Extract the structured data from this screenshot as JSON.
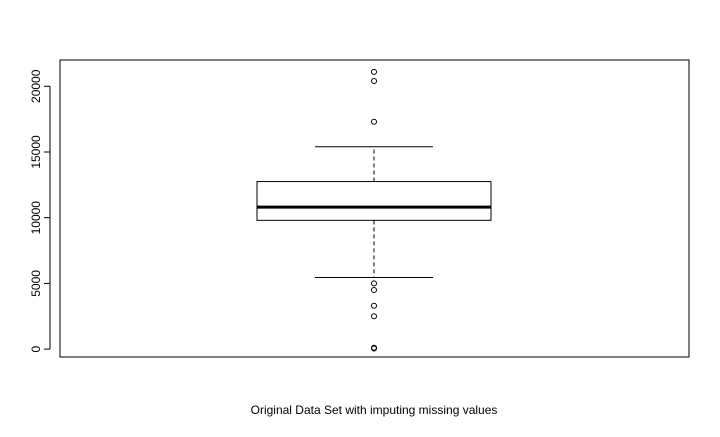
{
  "chart_data": {
    "type": "boxplot",
    "title": "",
    "xlabel": "Original Data Set with imputing missing values",
    "ylabel": "",
    "ylim": [
      -600,
      22000
    ],
    "y_ticks": [
      0,
      5000,
      10000,
      15000,
      20000
    ],
    "y_tick_labels": [
      "0",
      "5000",
      "10000",
      "15000",
      "20000"
    ],
    "grid": false,
    "legend": "none",
    "box": {
      "lower_whisker": 5450,
      "q1": 9800,
      "median": 10800,
      "q3": 12750,
      "upper_whisker": 15400
    },
    "outliers": [
      21100,
      20400,
      17300,
      5000,
      4500,
      3300,
      2500,
      100,
      50
    ],
    "colors": {
      "box_fill": "#ffffff",
      "stroke": "#000000"
    }
  }
}
